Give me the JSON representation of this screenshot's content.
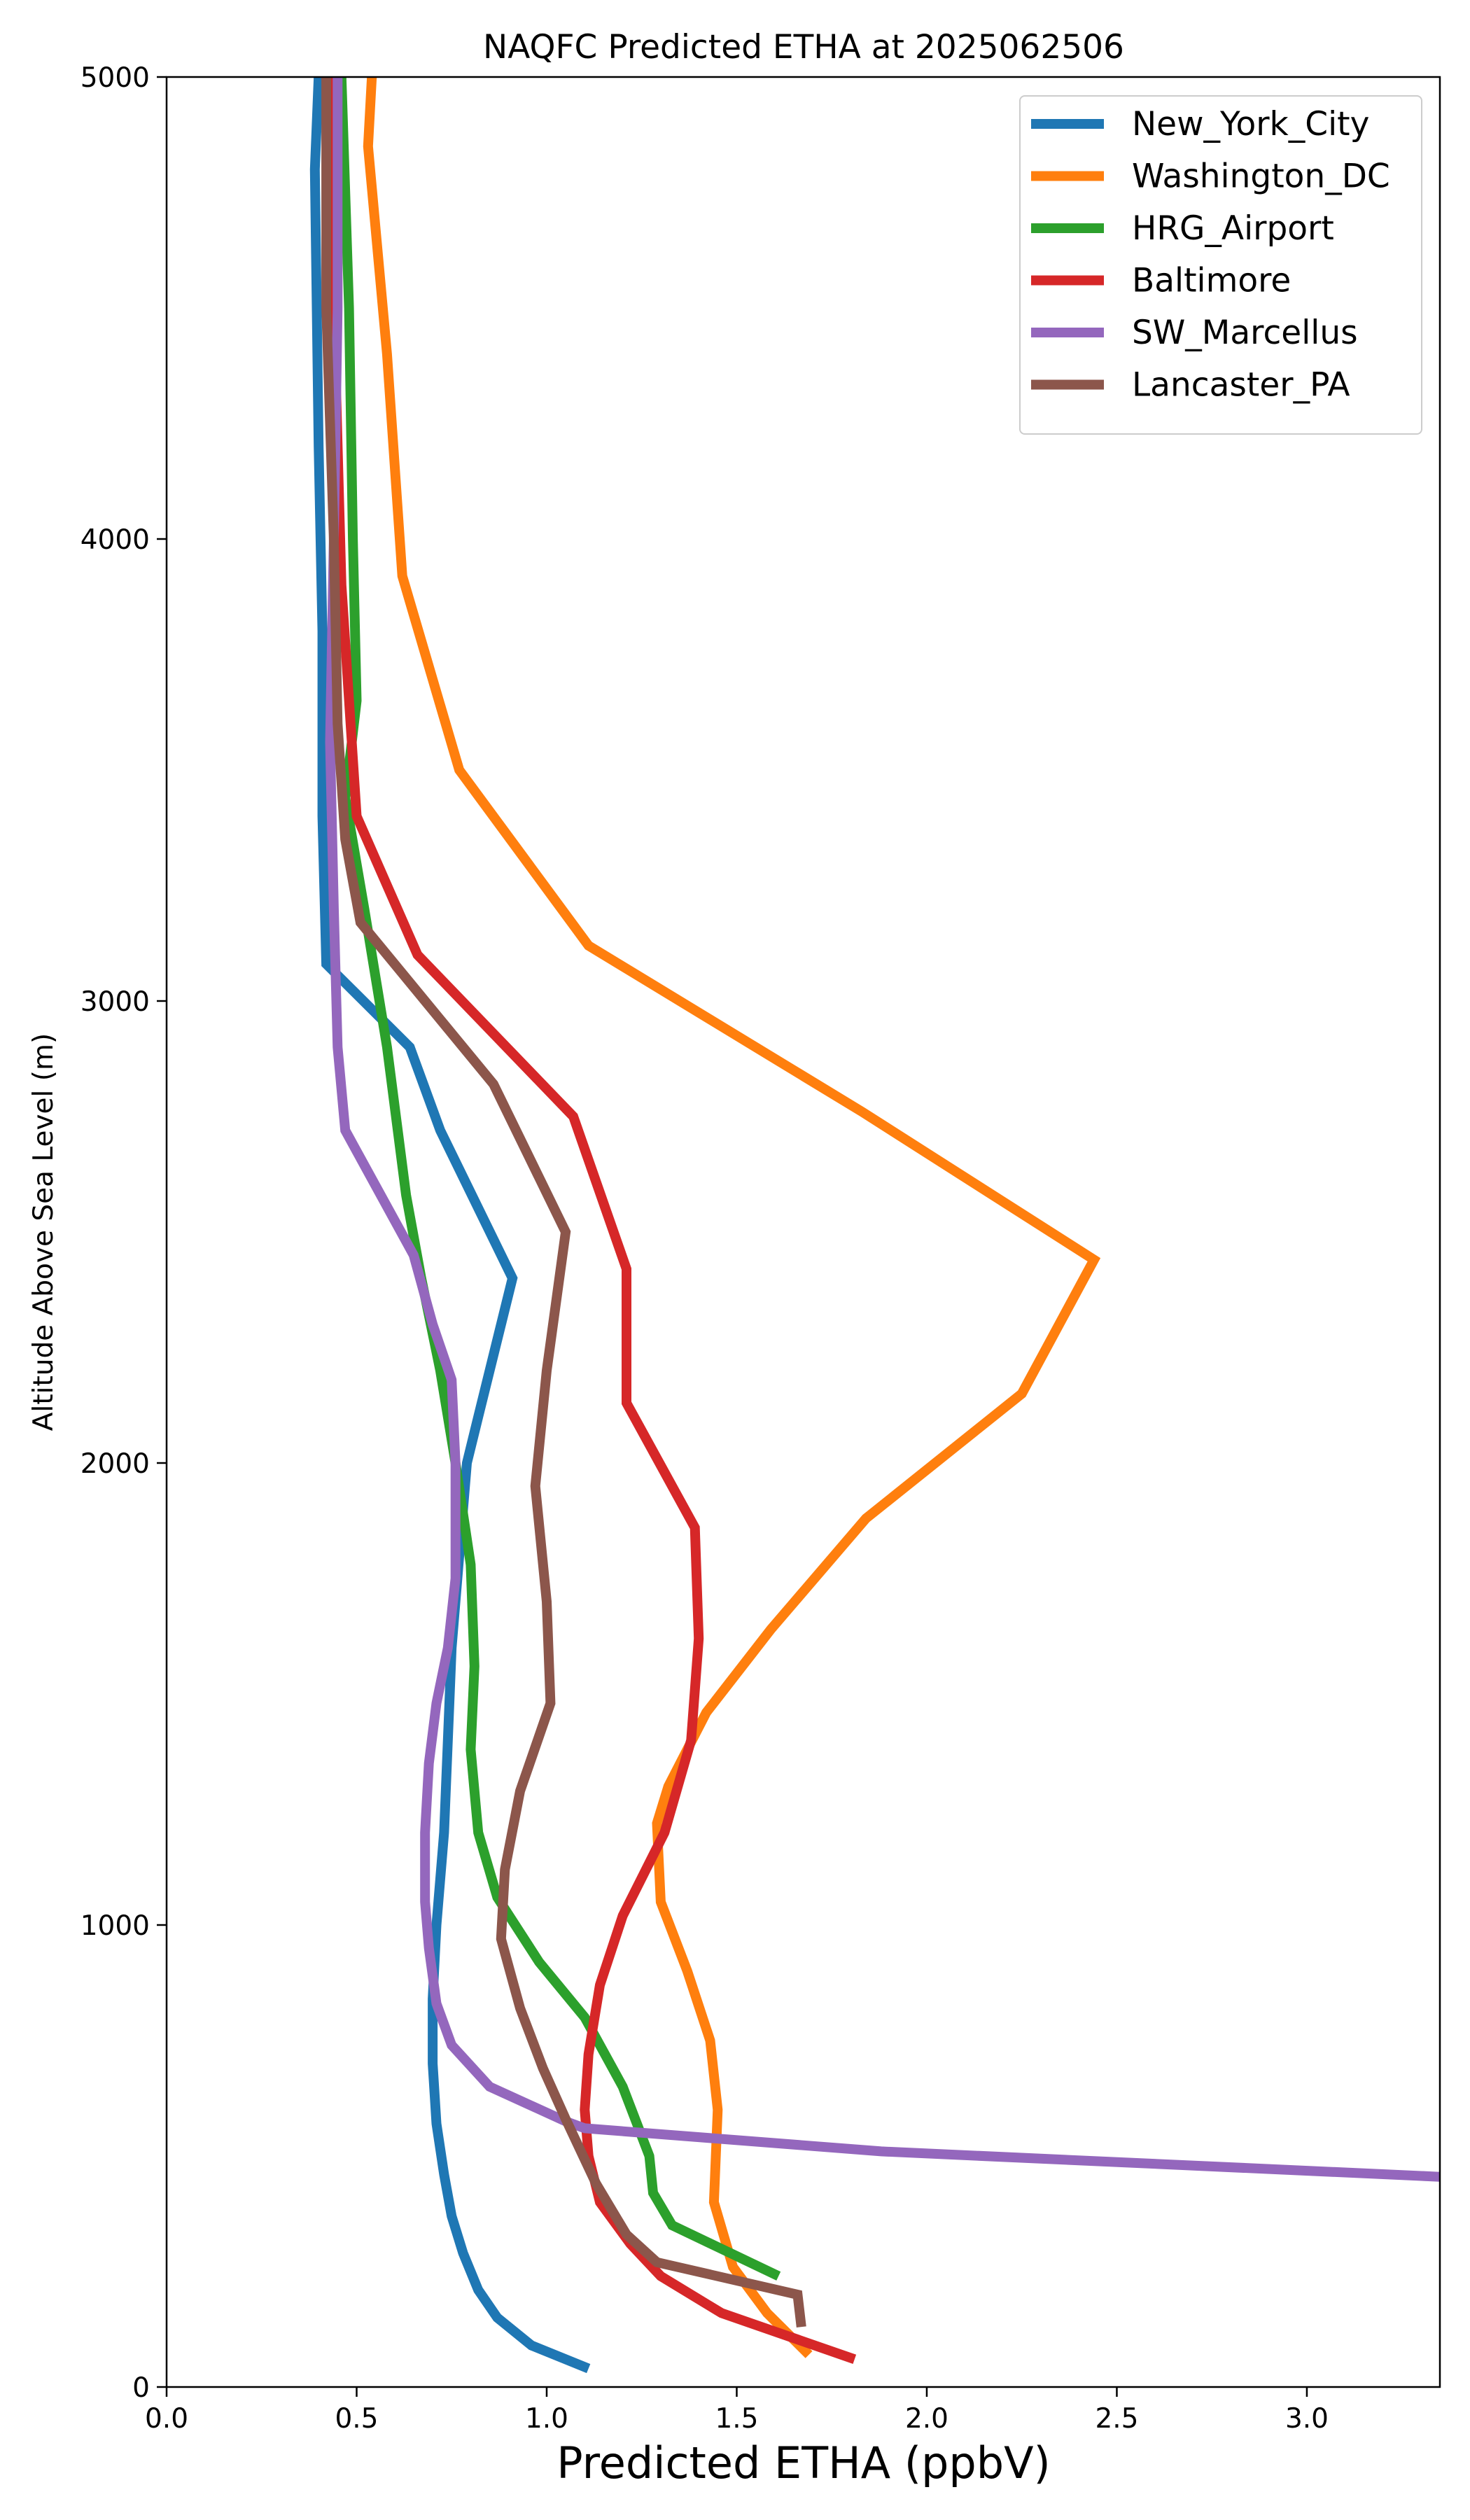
{
  "chart_data": {
    "type": "line",
    "title": "NAQFC Predicted ETHA at 2025062506",
    "xlabel": "Predicted ETHA (ppbV)",
    "ylabel": "Altitude Above Sea Level (m)",
    "xlim": [
      0,
      3.35
    ],
    "ylim": [
      0,
      5000
    ],
    "xticks": [
      "0.0",
      "0.5",
      "1.0",
      "1.5",
      "2.0",
      "2.5",
      "3.0"
    ],
    "yticks": [
      "0",
      "1000",
      "2000",
      "3000",
      "4000",
      "5000"
    ],
    "legend_position": "upper right",
    "grid": false,
    "series": [
      {
        "name": "New_York_City",
        "color": "#1f77b4",
        "points": [
          [
            1.11,
            40
          ],
          [
            0.96,
            90
          ],
          [
            0.87,
            150
          ],
          [
            0.82,
            210
          ],
          [
            0.78,
            290
          ],
          [
            0.75,
            370
          ],
          [
            0.73,
            460
          ],
          [
            0.71,
            570
          ],
          [
            0.7,
            700
          ],
          [
            0.7,
            840
          ],
          [
            0.71,
            1000
          ],
          [
            0.73,
            1200
          ],
          [
            0.74,
            1400
          ],
          [
            0.75,
            1600
          ],
          [
            0.77,
            1800
          ],
          [
            0.79,
            2000
          ],
          [
            0.82,
            2100
          ],
          [
            0.91,
            2400
          ],
          [
            0.72,
            2720
          ],
          [
            0.64,
            2900
          ],
          [
            0.42,
            3080
          ],
          [
            0.41,
            3400
          ],
          [
            0.41,
            3800
          ],
          [
            0.4,
            4200
          ],
          [
            0.39,
            4800
          ],
          [
            0.4,
            5000
          ]
        ]
      },
      {
        "name": "Washington_DC",
        "color": "#ff7f0e",
        "points": [
          [
            1.69,
            70
          ],
          [
            1.58,
            160
          ],
          [
            1.49,
            260
          ],
          [
            1.44,
            400
          ],
          [
            1.45,
            600
          ],
          [
            1.43,
            750
          ],
          [
            1.37,
            900
          ],
          [
            1.3,
            1050
          ],
          [
            1.29,
            1220
          ],
          [
            1.32,
            1300
          ],
          [
            1.42,
            1460
          ],
          [
            1.59,
            1640
          ],
          [
            1.84,
            1880
          ],
          [
            2.25,
            2150
          ],
          [
            2.44,
            2440
          ],
          [
            1.83,
            2760
          ],
          [
            1.11,
            3120
          ],
          [
            0.77,
            3500
          ],
          [
            0.62,
            3920
          ],
          [
            0.58,
            4400
          ],
          [
            0.53,
            4850
          ],
          [
            0.54,
            5000
          ]
        ]
      },
      {
        "name": "HRG_Airport",
        "color": "#2ca02c",
        "points": [
          [
            1.61,
            240
          ],
          [
            1.33,
            350
          ],
          [
            1.28,
            420
          ],
          [
            1.27,
            500
          ],
          [
            1.2,
            650
          ],
          [
            1.1,
            800
          ],
          [
            0.98,
            920
          ],
          [
            0.87,
            1060
          ],
          [
            0.82,
            1200
          ],
          [
            0.8,
            1380
          ],
          [
            0.81,
            1560
          ],
          [
            0.8,
            1780
          ],
          [
            0.76,
            2000
          ],
          [
            0.72,
            2200
          ],
          [
            0.67,
            2400
          ],
          [
            0.63,
            2580
          ],
          [
            0.58,
            2900
          ],
          [
            0.52,
            3200
          ],
          [
            0.47,
            3440
          ],
          [
            0.5,
            3650
          ],
          [
            0.49,
            4000
          ],
          [
            0.48,
            4500
          ],
          [
            0.46,
            5000
          ]
        ]
      },
      {
        "name": "Baltimore",
        "color": "#d62728",
        "points": [
          [
            1.81,
            60
          ],
          [
            1.46,
            160
          ],
          [
            1.3,
            240
          ],
          [
            1.22,
            310
          ],
          [
            1.14,
            400
          ],
          [
            1.11,
            500
          ],
          [
            1.1,
            600
          ],
          [
            1.11,
            720
          ],
          [
            1.14,
            870
          ],
          [
            1.2,
            1020
          ],
          [
            1.31,
            1200
          ],
          [
            1.38,
            1400
          ],
          [
            1.4,
            1620
          ],
          [
            1.39,
            1860
          ],
          [
            1.21,
            2130
          ],
          [
            1.21,
            2420
          ],
          [
            1.07,
            2750
          ],
          [
            0.66,
            3100
          ],
          [
            0.5,
            3400
          ],
          [
            0.46,
            3900
          ],
          [
            0.44,
            4500
          ],
          [
            0.43,
            5000
          ]
        ]
      },
      {
        "name": "SW_Marcellus",
        "color": "#9467bd",
        "points": [
          [
            3.35,
            455
          ],
          [
            1.88,
            510
          ],
          [
            1.1,
            560
          ],
          [
            1.05,
            575
          ],
          [
            0.85,
            650
          ],
          [
            0.75,
            740
          ],
          [
            0.71,
            830
          ],
          [
            0.69,
            950
          ],
          [
            0.68,
            1050
          ],
          [
            0.68,
            1200
          ],
          [
            0.69,
            1350
          ],
          [
            0.71,
            1480
          ],
          [
            0.74,
            1600
          ],
          [
            0.76,
            1750
          ],
          [
            0.76,
            2000
          ],
          [
            0.75,
            2180
          ],
          [
            0.7,
            2300
          ],
          [
            0.65,
            2450
          ],
          [
            0.47,
            2720
          ],
          [
            0.45,
            2900
          ],
          [
            0.44,
            3200
          ],
          [
            0.43,
            3560
          ],
          [
            0.44,
            4000
          ],
          [
            0.45,
            4500
          ],
          [
            0.45,
            5000
          ]
        ]
      },
      {
        "name": "Lancaster_PA",
        "color": "#8c564b",
        "points": [
          [
            1.67,
            130
          ],
          [
            1.66,
            200
          ],
          [
            1.29,
            270
          ],
          [
            1.21,
            330
          ],
          [
            1.13,
            440
          ],
          [
            1.05,
            580
          ],
          [
            0.99,
            690
          ],
          [
            0.93,
            820
          ],
          [
            0.88,
            970
          ],
          [
            0.89,
            1120
          ],
          [
            0.93,
            1290
          ],
          [
            1.01,
            1480
          ],
          [
            1.0,
            1700
          ],
          [
            0.97,
            1950
          ],
          [
            1.0,
            2200
          ],
          [
            1.05,
            2500
          ],
          [
            0.86,
            2820
          ],
          [
            0.51,
            3170
          ],
          [
            0.47,
            3350
          ],
          [
            0.45,
            3600
          ],
          [
            0.44,
            4000
          ],
          [
            0.42,
            4500
          ],
          [
            0.42,
            5000
          ]
        ]
      }
    ]
  }
}
